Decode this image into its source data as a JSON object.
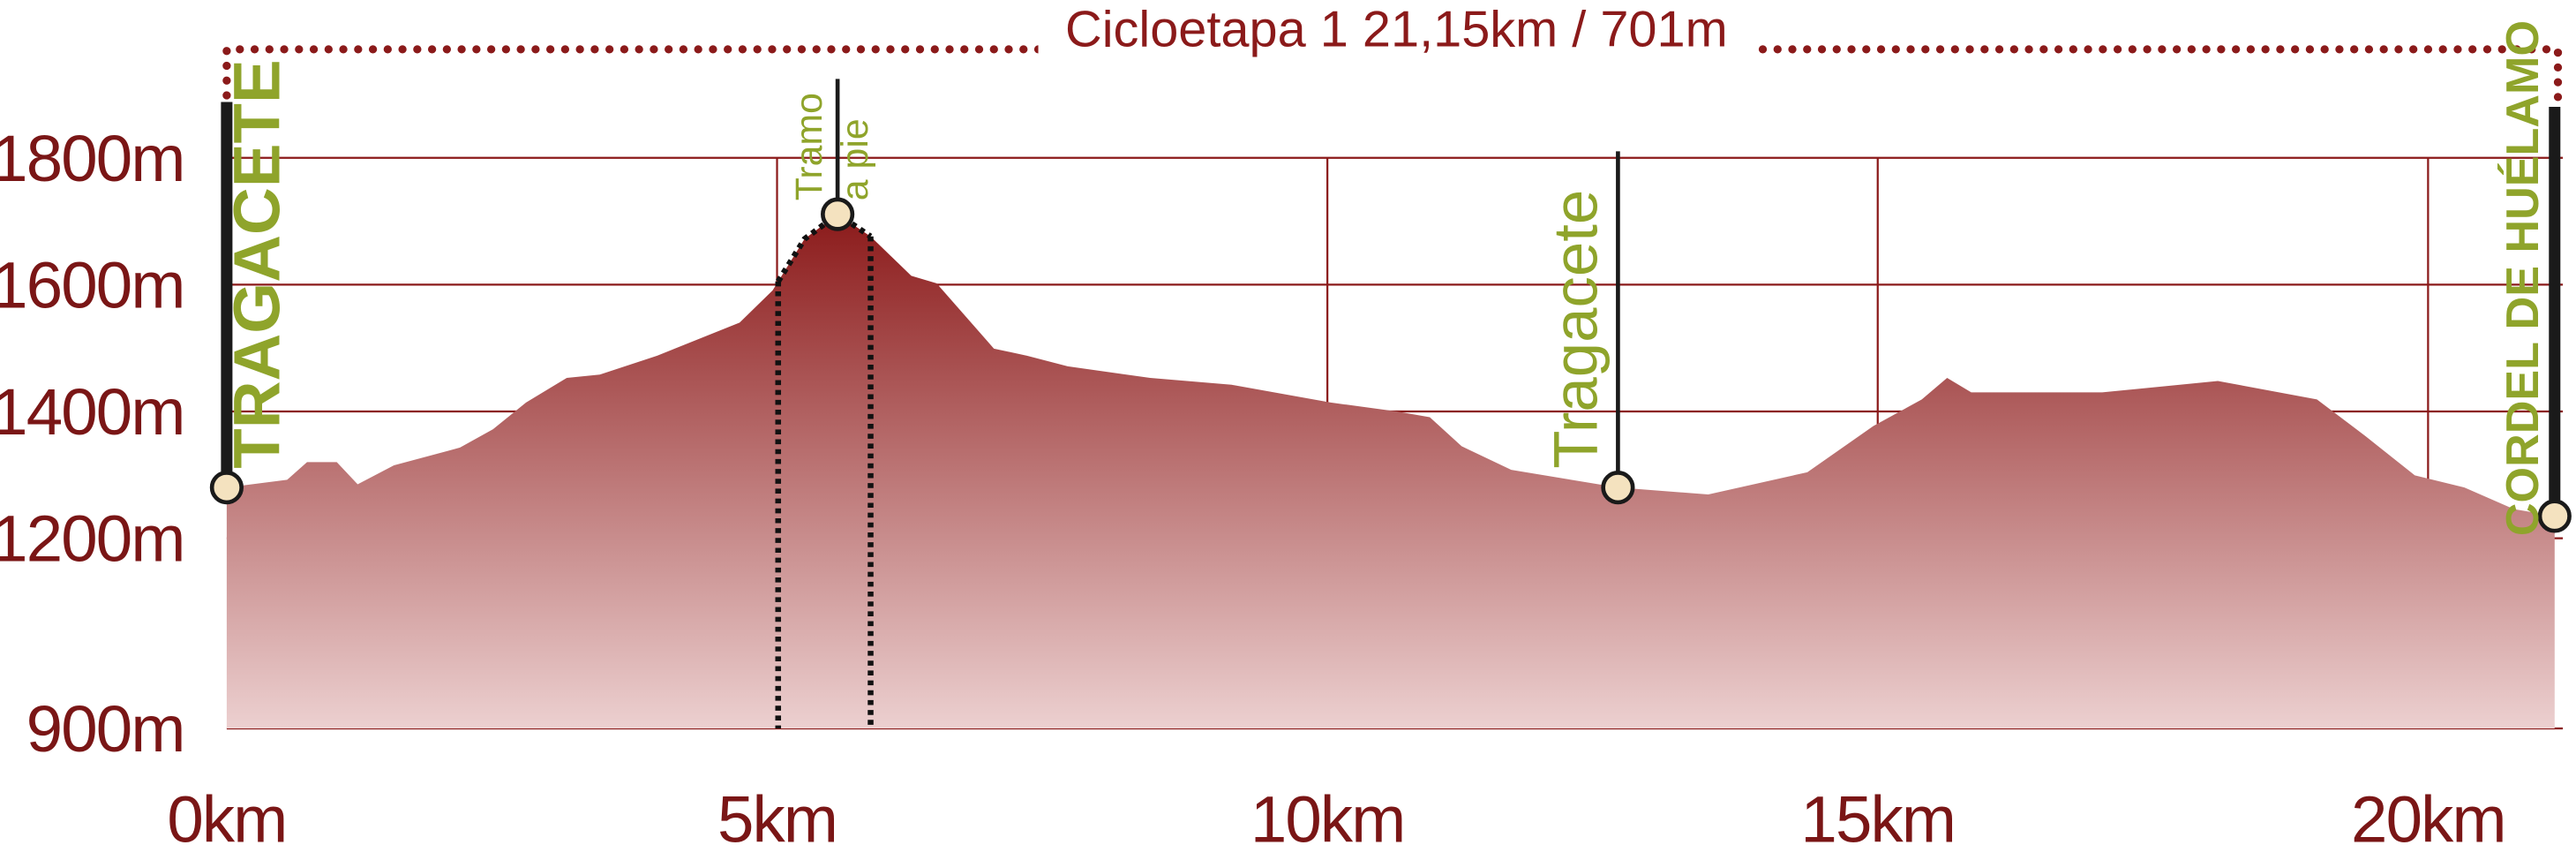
{
  "chart_data": {
    "type": "area",
    "title": "Cicloetapa 1 21,15km / 701m",
    "x": [
      0,
      0.55,
      0.73,
      1.0,
      1.19,
      1.52,
      2.12,
      2.42,
      2.72,
      3.09,
      3.39,
      3.91,
      4.66,
      4.96,
      5.25,
      5.55,
      5.85,
      6.22,
      6.45,
      6.97,
      7.27,
      7.64,
      8.39,
      9.13,
      10.03,
      10.63,
      10.93,
      11.22,
      11.67,
      12.64,
      13.46,
      14.36,
      14.96,
      15.4,
      15.63,
      15.85,
      16.45,
      17.04,
      18.09,
      18.99,
      19.43,
      19.88,
      20.33,
      20.78,
      21.15
    ],
    "values": [
      1280,
      1292,
      1320,
      1320,
      1285,
      1315,
      1343,
      1372,
      1414,
      1453,
      1458,
      1488,
      1540,
      1591,
      1672,
      1711,
      1676,
      1614,
      1602,
      1499,
      1488,
      1471,
      1453,
      1442,
      1414,
      1400,
      1391,
      1345,
      1308,
      1280,
      1269,
      1304,
      1377,
      1419,
      1453,
      1430,
      1430,
      1430,
      1448,
      1419,
      1361,
      1299,
      1280,
      1246,
      1235
    ],
    "color": "#8b1a1a",
    "xlim": [
      0,
      21.15
    ],
    "ylim": [
      900,
      1900
    ],
    "xticks": [
      {
        "value": 0,
        "label": "0km"
      },
      {
        "value": 5,
        "label": "5km"
      },
      {
        "value": 10,
        "label": "10km"
      },
      {
        "value": 15,
        "label": "15km"
      },
      {
        "value": 20,
        "label": "20km"
      }
    ],
    "yticks": [
      {
        "value": 900,
        "label": "900m"
      },
      {
        "value": 1200,
        "label": "1200m"
      },
      {
        "value": 1400,
        "label": "1400m"
      },
      {
        "value": 1600,
        "label": "1600m"
      },
      {
        "value": 1800,
        "label": "1800m"
      }
    ],
    "grid": true,
    "walking_section": [
      5.01,
      5.85
    ],
    "waypoints": [
      {
        "label": [
          "TRAGACETE"
        ],
        "km": 0,
        "elevation": 1280
      },
      {
        "label": [
          "Tramo",
          "a pie"
        ],
        "km": 5.55,
        "elevation": 1711
      },
      {
        "label": [
          "Tragacete"
        ],
        "km": 12.64,
        "elevation": 1280
      },
      {
        "label": [
          "CORDEL DE HUÉLAMO"
        ],
        "km": 21.15,
        "elevation": 1235
      }
    ]
  }
}
